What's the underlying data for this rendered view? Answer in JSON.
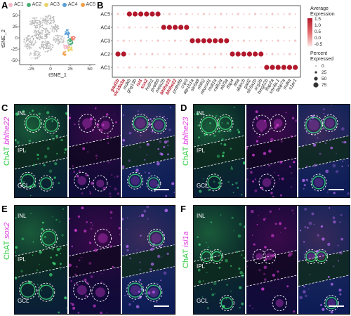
{
  "panels": {
    "a": "A",
    "b": "B",
    "c": "C",
    "d": "D",
    "e": "E",
    "f": "F"
  },
  "tsne": {
    "legend": [
      {
        "label": "AC1",
        "color": "#f2b8c6"
      },
      {
        "label": "AC2",
        "color": "#4caf7a"
      },
      {
        "label": "AC3",
        "color": "#e8d36a"
      },
      {
        "label": "AC4",
        "color": "#5aa0d8"
      },
      {
        "label": "AC5",
        "color": "#f0a04a"
      }
    ],
    "xlabel": "tSNE_1",
    "ylabel": "tSNE_2",
    "xticks": [
      "-25",
      "0",
      "25",
      "50"
    ],
    "yticks": [
      "50",
      "25",
      "0",
      "-25",
      "-50"
    ]
  },
  "chart_data": {
    "type": "scatter",
    "title": "",
    "xlabel": "",
    "ylabel": "",
    "categories": [
      "AC5",
      "AC4",
      "AC3",
      "AC2",
      "AC1"
    ],
    "genes": [
      "gad1b",
      "slc18a3a",
      "mdkb",
      "gng13b",
      "isl1",
      "sox2",
      "hs6h1",
      "pvalb6",
      "meis2b",
      "bhlhe23",
      "bhlhe22",
      "prdm8b",
      "crip3",
      "atp1b1a",
      "slc6a9",
      "nhlh2",
      "neurod1",
      "mdt1a",
      "calb2a",
      "ebf3a",
      "tfap4",
      "tkta",
      "aldocb",
      "gad2",
      "slc6a1b",
      "scg2b",
      "hmgb2b",
      "tfap2a",
      "sox4a.1",
      "fabp7a",
      "mdka",
      "s1pr1"
    ],
    "highlighted_genes": [
      "gad1b",
      "slc18a3a",
      "isl1",
      "sox2",
      "bhlhe23",
      "bhlhe22"
    ],
    "legend": {
      "expression_title": "Average Expression",
      "expression_ticks": [
        "1.5",
        "1.0",
        "0.5",
        "0.0",
        "-0.5"
      ],
      "percent_title": "Percent Expressed",
      "percent_values": [
        0,
        25,
        50,
        75
      ]
    }
  },
  "micrographs": {
    "c": {
      "chat": "ChAT",
      "gene": "bhlhe22"
    },
    "d": {
      "chat": "ChAT",
      "gene": "bhlhe23"
    },
    "e": {
      "chat": "ChAT",
      "gene": "sox2"
    },
    "f": {
      "chat": "ChAT",
      "gene": "isl1a"
    },
    "layers": {
      "inl": "INL",
      "ipl": "IPL",
      "gcl": "GCL"
    }
  }
}
